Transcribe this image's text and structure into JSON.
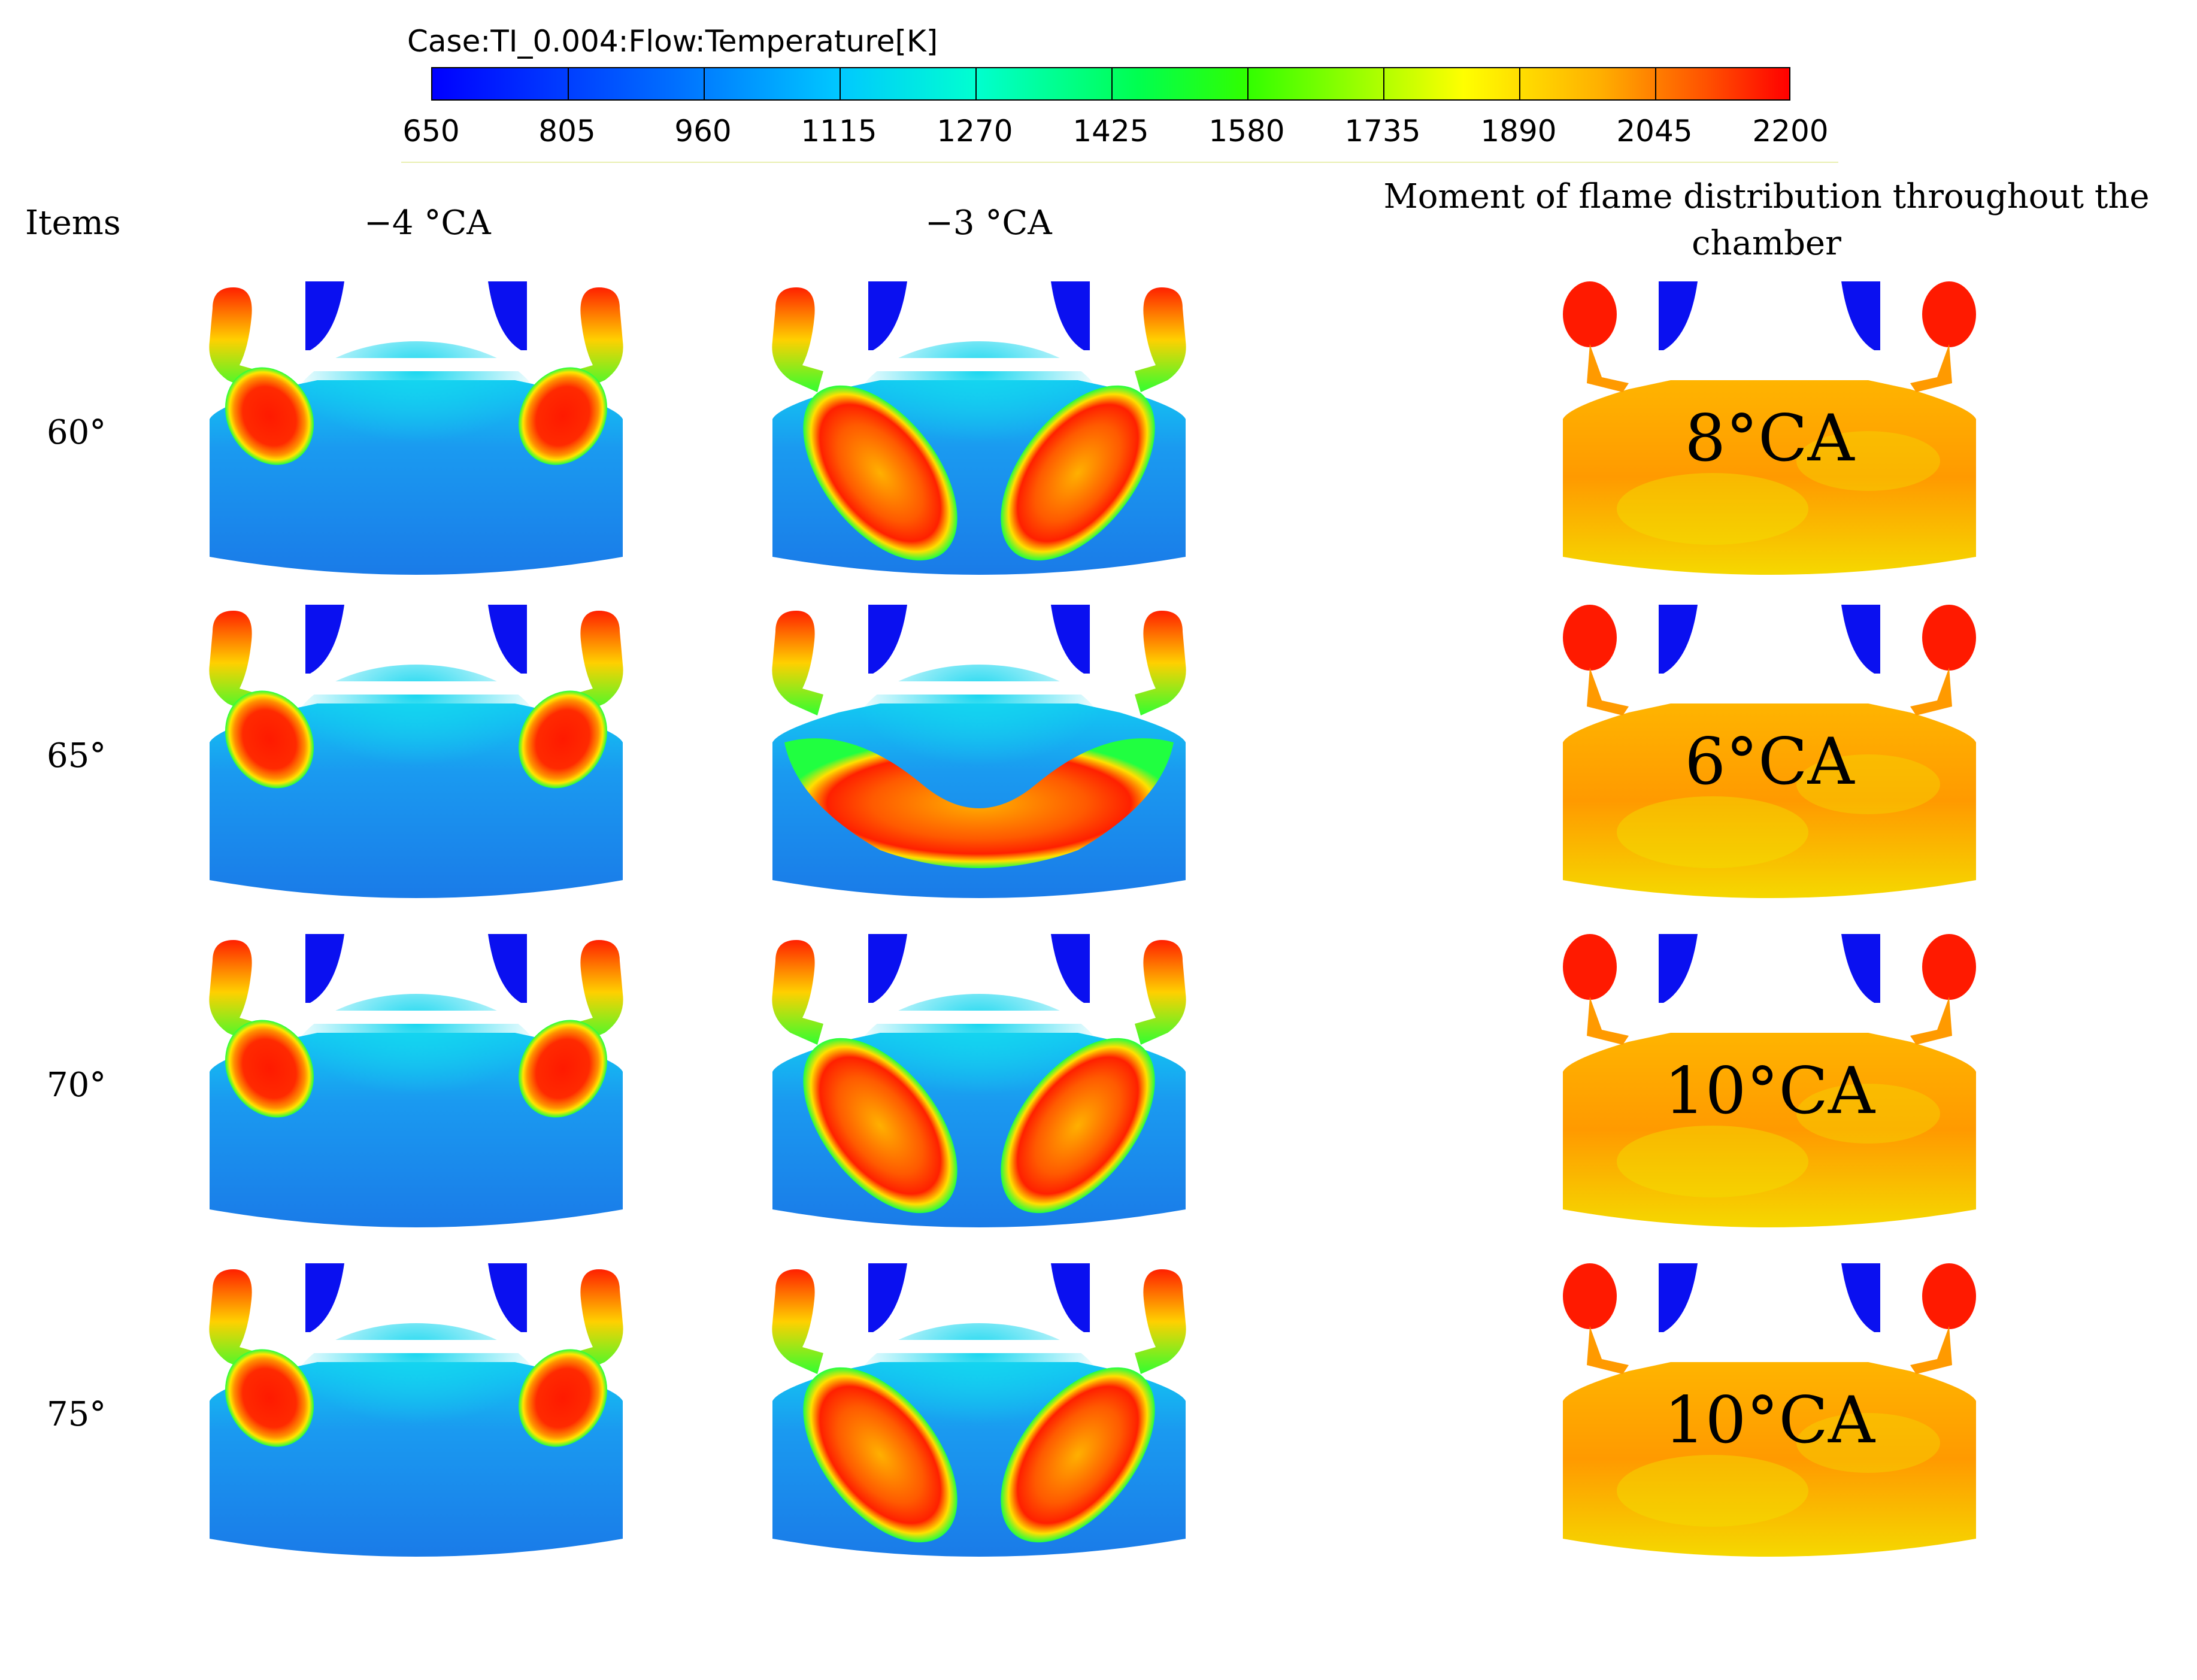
{
  "colorbar": {
    "title": "Case:TI_0.004:Flow:Temperature[K]",
    "ticks": [
      "650",
      "805",
      "960",
      "1115",
      "1270",
      "1425",
      "1580",
      "1735",
      "1890",
      "2045",
      "2200"
    ],
    "colors": [
      "#0000ff",
      "#00c8ff",
      "#00ff50",
      "#ffff00",
      "#ff0000"
    ]
  },
  "headers": {
    "items": "Items",
    "col1": "−4 °CA",
    "col2": "−3 °CA",
    "col3": "Moment of flame distribution throughout the chamber"
  },
  "rows": [
    {
      "label": "60°",
      "moment": "8°CA"
    },
    {
      "label": "65°",
      "moment": "6°CA"
    },
    {
      "label": "70°",
      "moment": "10°CA"
    },
    {
      "label": "75°",
      "moment": "10°CA"
    }
  ]
}
